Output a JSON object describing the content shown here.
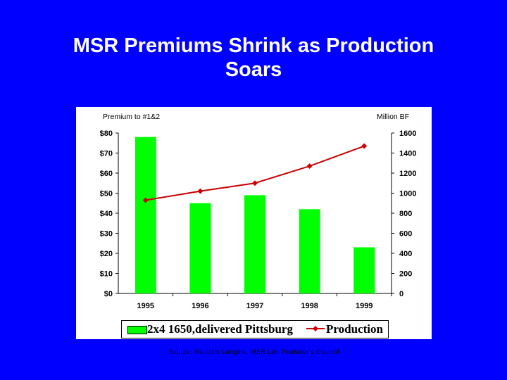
{
  "slide": {
    "title_line1": "MSR Premiums Shrink as Production",
    "title_line2": "Soars",
    "source": "Source: Random Lengths, MSR Lbr. Producer's Council",
    "background_color": "#0000ff"
  },
  "chart_data": {
    "type": "bar",
    "categories": [
      "1995",
      "1996",
      "1997",
      "1998",
      "1999"
    ],
    "series": [
      {
        "name": "2x4 1650,delivered Pittsburg",
        "type": "bar",
        "axis": "left",
        "color": "#00ff00",
        "values": [
          78,
          45,
          49,
          42,
          23
        ]
      },
      {
        "name": "Production",
        "type": "line",
        "axis": "right",
        "color": "#cc0000",
        "values": [
          930,
          1020,
          1100,
          1270,
          1470
        ]
      }
    ],
    "ylabel_left": "Premium to #1&2",
    "ylabel_right": "Million BF",
    "ylim_left": [
      0,
      80
    ],
    "ylim_right": [
      0,
      1600
    ],
    "yticks_left": [
      "$0",
      "$10",
      "$20",
      "$30",
      "$40",
      "$50",
      "$60",
      "$70",
      "$80"
    ],
    "yticks_right": [
      "0",
      "200",
      "400",
      "600",
      "800",
      "1000",
      "1200",
      "1400",
      "1600"
    ],
    "grid": false,
    "legend_position": "bottom"
  }
}
